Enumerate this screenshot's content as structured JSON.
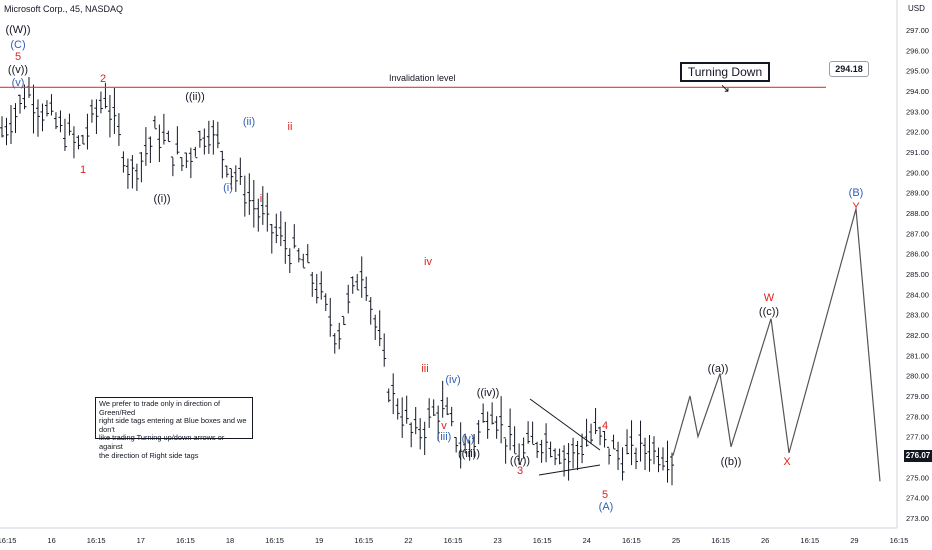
{
  "header": {
    "title": "Microsoft Corp., 45, NASDAQ",
    "currency": "USD"
  },
  "price_axis": {
    "ticks": [
      "297.00",
      "296.00",
      "295.00",
      "294.00",
      "293.00",
      "292.00",
      "291.00",
      "290.00",
      "289.00",
      "288.00",
      "287.00",
      "286.00",
      "285.00",
      "284.00",
      "283.00",
      "282.00",
      "281.00",
      "280.00",
      "279.00",
      "278.00",
      "277.00",
      "276.00",
      "275.00",
      "274.00",
      "273.00"
    ],
    "current_price": "276.07"
  },
  "time_axis": {
    "ticks": [
      "16:15",
      "16",
      "16:15",
      "17",
      "16:15",
      "18",
      "16:15",
      "19",
      "16:15",
      "22",
      "16:15",
      "23",
      "16:15",
      "24",
      "16:15",
      "25",
      "16:15",
      "26",
      "16:15",
      "29",
      "16:15"
    ]
  },
  "annotations": {
    "invalidation_label": "Invalidation level",
    "invalidation_price": "294.18",
    "turning_down": "Turning Down ↘",
    "disclaimer": "We prefer to trade only in direction of Green/Red\nright side tags entering at Blue boxes and we don't\nlike trading Turning up/down arrows or against\nthe direction of Right side tags"
  },
  "wave_labels": [
    {
      "text": "((W))",
      "color": "#131722"
    },
    {
      "text": "(C)",
      "color": "#2f5fb3"
    },
    {
      "text": "5",
      "color": "#e02020"
    },
    {
      "text": "((v))",
      "color": "#131722"
    },
    {
      "text": "(v)",
      "color": "#2f5fb3"
    },
    {
      "text": "1",
      "color": "#e02020"
    },
    {
      "text": "2",
      "color": "#e02020"
    },
    {
      "text": "((i))",
      "color": "#131722"
    },
    {
      "text": "((ii))",
      "color": "#131722"
    },
    {
      "text": "(i)",
      "color": "#2f5fb3"
    },
    {
      "text": "(ii)",
      "color": "#2f5fb3"
    },
    {
      "text": "i",
      "color": "#e02020"
    },
    {
      "text": "ii",
      "color": "#e02020"
    },
    {
      "text": "iii",
      "color": "#e02020"
    },
    {
      "text": "iv",
      "color": "#e02020"
    },
    {
      "text": "v",
      "color": "#e02020"
    },
    {
      "text": "(iii)",
      "color": "#2f5fb3"
    },
    {
      "text": "(iv)",
      "color": "#2f5fb3"
    },
    {
      "text": "(v)",
      "color": "#2f5fb3"
    },
    {
      "text": "((iii))",
      "color": "#131722"
    },
    {
      "text": "((iv))",
      "color": "#131722"
    },
    {
      "text": "((v))",
      "color": "#131722"
    },
    {
      "text": "3",
      "color": "#e02020"
    },
    {
      "text": "4",
      "color": "#e02020"
    },
    {
      "text": "5",
      "color": "#e02020"
    },
    {
      "text": "(A)",
      "color": "#2f5fb3"
    },
    {
      "text": "((a))",
      "color": "#131722"
    },
    {
      "text": "((b))",
      "color": "#131722"
    },
    {
      "text": "((c))",
      "color": "#131722"
    },
    {
      "text": "W",
      "color": "#e02020"
    },
    {
      "text": "X",
      "color": "#e02020"
    },
    {
      "text": "(B)",
      "color": "#2f5fb3"
    },
    {
      "text": "Y",
      "color": "#e02020"
    }
  ],
  "colors": {
    "invalidation": "#e53935",
    "projection": "#555555",
    "bars": "#131722",
    "triangle": "#131722"
  },
  "chart_data": {
    "type": "line",
    "title": "Microsoft Corp., 45, NASDAQ",
    "xlabel": "",
    "ylabel": "",
    "ylim": [
      272.5,
      297.8
    ],
    "grid": false,
    "projection_path": [
      276.07,
      279.0,
      277.0,
      280.1,
      276.5,
      282.8,
      276.2,
      288.2,
      274.8
    ],
    "invalidation_level": 294.18,
    "approx_price_path": [
      292.0,
      294.0,
      292.5,
      291.3,
      293.8,
      290.0,
      292.0,
      290.5,
      292.2,
      290.0,
      288.0,
      286.5,
      285.0,
      282.0,
      285.5,
      279.5,
      277.0,
      278.5,
      276.2,
      278.5,
      276.0,
      277.0,
      276.0,
      277.2,
      276.0,
      276.5,
      276.1
    ]
  }
}
